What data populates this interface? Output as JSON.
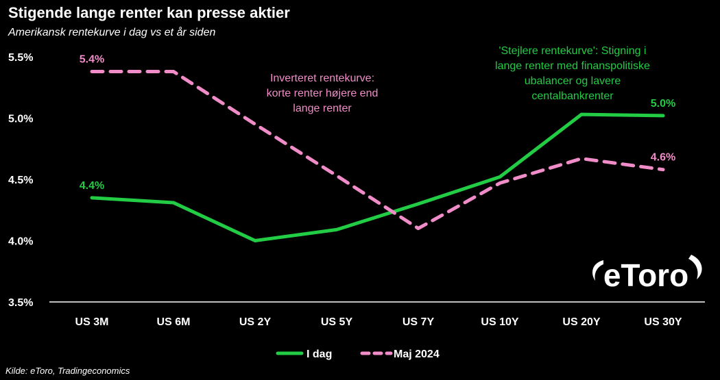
{
  "title": "Stigende lange renter kan presse aktier",
  "subtitle": "Amerikansk rentekurve i dag vs et år siden",
  "source": "Kilde: eToro, Tradingeconomics",
  "annotations": {
    "inverted": "Inverteret rentekurve: korte renter højere end lange renter",
    "steeper": "'Stejlere rentekurve': Stigning i lange renter med finanspolitiske ubalancer og lavere centalbankrenter"
  },
  "logo_text": "eToro",
  "colors": {
    "today": "#22cc44",
    "may2024": "#f08cc8",
    "background": "#000000",
    "text": "#ffffff"
  },
  "chart_data": {
    "type": "line",
    "title": "Stigende lange renter kan presse aktier",
    "subtitle": "Amerikansk rentekurve i dag vs et år siden",
    "categories": [
      "US 3M",
      "US 6M",
      "US 2Y",
      "US 5Y",
      "US 7Y",
      "US 10Y",
      "US 20Y",
      "US 30Y"
    ],
    "series": [
      {
        "name": "I dag",
        "style": "solid",
        "color": "#22cc44",
        "values": [
          4.35,
          4.31,
          4.0,
          4.09,
          4.3,
          4.52,
          5.03,
          5.02
        ]
      },
      {
        "name": "Maj 2024",
        "style": "dashed",
        "color": "#f08cc8",
        "values": [
          5.38,
          5.38,
          4.95,
          4.53,
          4.1,
          4.47,
          4.67,
          4.58
        ]
      }
    ],
    "data_labels": [
      {
        "series": "I dag",
        "index": 0,
        "text": "4.4%"
      },
      {
        "series": "Maj 2024",
        "index": 0,
        "text": "5.4%"
      },
      {
        "series": "I dag",
        "index": 7,
        "text": "5.0%"
      },
      {
        "series": "Maj 2024",
        "index": 7,
        "text": "4.6%"
      }
    ],
    "y_ticks": [
      "3.5%",
      "4.0%",
      "4.5%",
      "5.0%",
      "5.5%"
    ],
    "y_tick_values": [
      3.5,
      4.0,
      4.5,
      5.0,
      5.5
    ],
    "ylim": [
      3.5,
      5.5
    ],
    "xlabel": "",
    "ylabel": "",
    "grid": false,
    "legend_position": "bottom-center"
  }
}
